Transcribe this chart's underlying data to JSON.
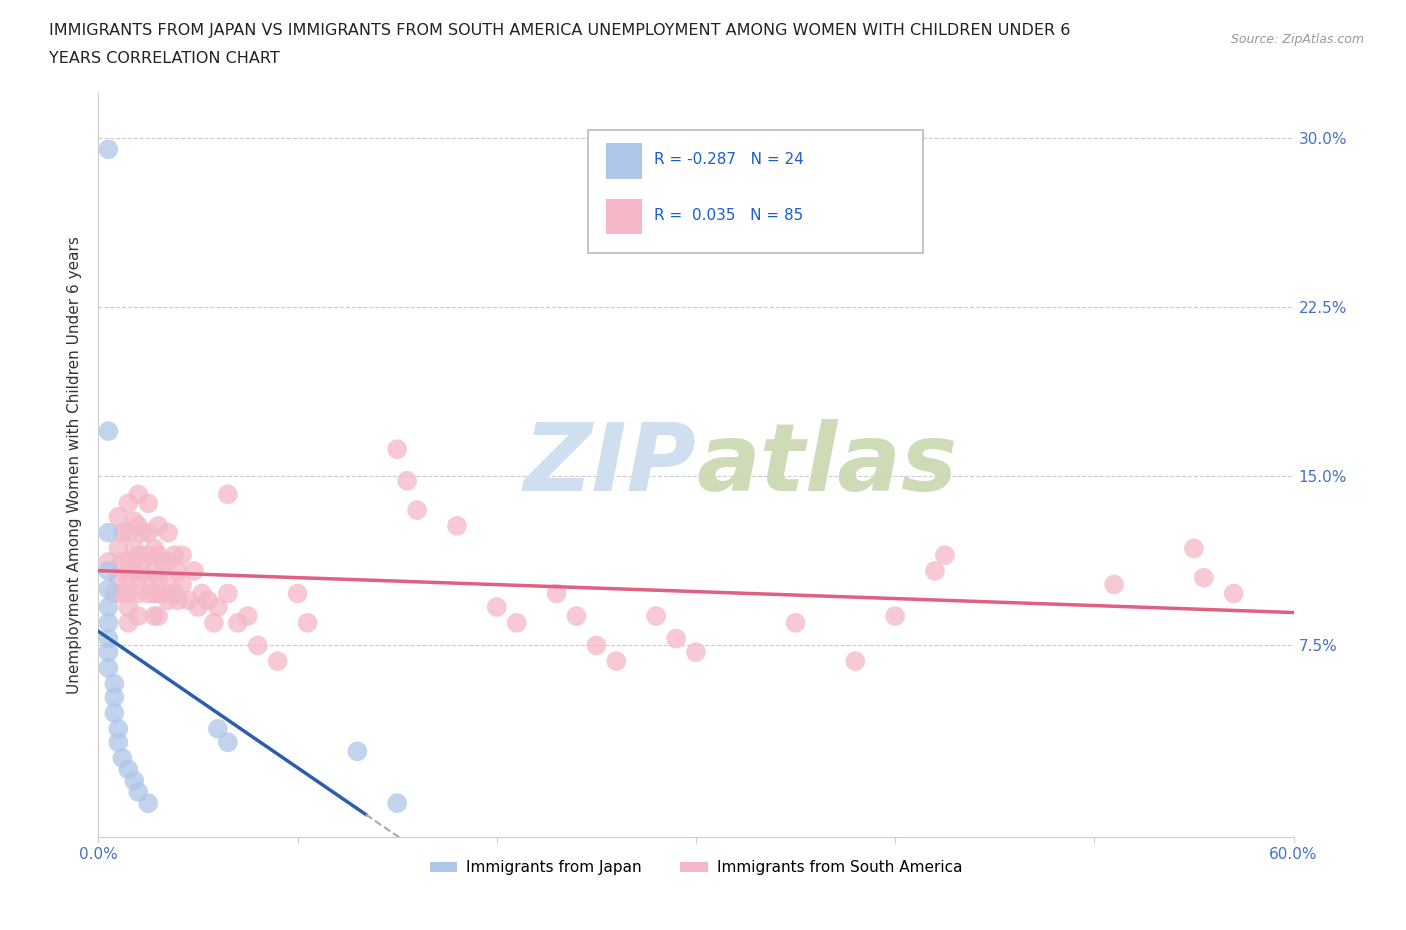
{
  "title_line1": "IMMIGRANTS FROM JAPAN VS IMMIGRANTS FROM SOUTH AMERICA UNEMPLOYMENT AMONG WOMEN WITH CHILDREN UNDER 6",
  "title_line2": "YEARS CORRELATION CHART",
  "source": "Source: ZipAtlas.com",
  "ylabel": "Unemployment Among Women with Children Under 6 years",
  "xlim": [
    0.0,
    0.6
  ],
  "ylim": [
    -0.01,
    0.32
  ],
  "xticks": [
    0.0,
    0.1,
    0.2,
    0.3,
    0.4,
    0.5,
    0.6
  ],
  "xticklabels_visible": [
    "0.0%",
    "",
    "",
    "",
    "",
    "",
    "60.0%"
  ],
  "yticks": [
    0.0,
    0.075,
    0.15,
    0.225,
    0.3
  ],
  "yticklabels_right": [
    "",
    "7.5%",
    "15.0%",
    "22.5%",
    "30.0%"
  ],
  "tick_color": "#4472c4",
  "color_japan": "#aec6e8",
  "color_sa": "#f4b8c8",
  "color_japan_line": "#2b5fad",
  "color_sa_line": "#e06080",
  "watermark_color": "#d0dff0",
  "japan_points": [
    [
      0.005,
      0.295
    ],
    [
      0.005,
      0.17
    ],
    [
      0.005,
      0.125
    ],
    [
      0.005,
      0.108
    ],
    [
      0.005,
      0.1
    ],
    [
      0.005,
      0.092
    ],
    [
      0.005,
      0.085
    ],
    [
      0.005,
      0.078
    ],
    [
      0.005,
      0.072
    ],
    [
      0.005,
      0.065
    ],
    [
      0.008,
      0.058
    ],
    [
      0.008,
      0.052
    ],
    [
      0.008,
      0.045
    ],
    [
      0.01,
      0.038
    ],
    [
      0.01,
      0.032
    ],
    [
      0.012,
      0.025
    ],
    [
      0.015,
      0.02
    ],
    [
      0.018,
      0.015
    ],
    [
      0.02,
      0.01
    ],
    [
      0.025,
      0.005
    ],
    [
      0.06,
      0.038
    ],
    [
      0.065,
      0.032
    ],
    [
      0.13,
      0.028
    ],
    [
      0.15,
      0.005
    ]
  ],
  "sa_points": [
    [
      0.005,
      0.112
    ],
    [
      0.008,
      0.098
    ],
    [
      0.01,
      0.132
    ],
    [
      0.01,
      0.118
    ],
    [
      0.01,
      0.105
    ],
    [
      0.012,
      0.125
    ],
    [
      0.012,
      0.112
    ],
    [
      0.012,
      0.098
    ],
    [
      0.015,
      0.138
    ],
    [
      0.015,
      0.125
    ],
    [
      0.015,
      0.112
    ],
    [
      0.015,
      0.105
    ],
    [
      0.015,
      0.098
    ],
    [
      0.015,
      0.092
    ],
    [
      0.015,
      0.085
    ],
    [
      0.018,
      0.13
    ],
    [
      0.018,
      0.118
    ],
    [
      0.018,
      0.108
    ],
    [
      0.02,
      0.142
    ],
    [
      0.02,
      0.128
    ],
    [
      0.02,
      0.115
    ],
    [
      0.02,
      0.105
    ],
    [
      0.02,
      0.098
    ],
    [
      0.02,
      0.088
    ],
    [
      0.022,
      0.125
    ],
    [
      0.022,
      0.112
    ],
    [
      0.025,
      0.138
    ],
    [
      0.025,
      0.125
    ],
    [
      0.025,
      0.115
    ],
    [
      0.025,
      0.105
    ],
    [
      0.025,
      0.098
    ],
    [
      0.028,
      0.118
    ],
    [
      0.028,
      0.108
    ],
    [
      0.028,
      0.098
    ],
    [
      0.028,
      0.088
    ],
    [
      0.03,
      0.128
    ],
    [
      0.03,
      0.115
    ],
    [
      0.03,
      0.105
    ],
    [
      0.03,
      0.098
    ],
    [
      0.03,
      0.088
    ],
    [
      0.032,
      0.112
    ],
    [
      0.032,
      0.098
    ],
    [
      0.035,
      0.125
    ],
    [
      0.035,
      0.112
    ],
    [
      0.035,
      0.102
    ],
    [
      0.035,
      0.095
    ],
    [
      0.038,
      0.115
    ],
    [
      0.038,
      0.098
    ],
    [
      0.04,
      0.108
    ],
    [
      0.04,
      0.095
    ],
    [
      0.042,
      0.115
    ],
    [
      0.042,
      0.102
    ],
    [
      0.045,
      0.095
    ],
    [
      0.048,
      0.108
    ],
    [
      0.05,
      0.092
    ],
    [
      0.052,
      0.098
    ],
    [
      0.055,
      0.095
    ],
    [
      0.058,
      0.085
    ],
    [
      0.06,
      0.092
    ],
    [
      0.065,
      0.098
    ],
    [
      0.065,
      0.142
    ],
    [
      0.07,
      0.085
    ],
    [
      0.075,
      0.088
    ],
    [
      0.08,
      0.075
    ],
    [
      0.09,
      0.068
    ],
    [
      0.1,
      0.098
    ],
    [
      0.105,
      0.085
    ],
    [
      0.15,
      0.162
    ],
    [
      0.155,
      0.148
    ],
    [
      0.16,
      0.135
    ],
    [
      0.18,
      0.128
    ],
    [
      0.2,
      0.092
    ],
    [
      0.21,
      0.085
    ],
    [
      0.23,
      0.098
    ],
    [
      0.24,
      0.088
    ],
    [
      0.25,
      0.075
    ],
    [
      0.26,
      0.068
    ],
    [
      0.28,
      0.088
    ],
    [
      0.29,
      0.078
    ],
    [
      0.3,
      0.072
    ],
    [
      0.35,
      0.085
    ],
    [
      0.38,
      0.068
    ],
    [
      0.4,
      0.088
    ],
    [
      0.42,
      0.108
    ],
    [
      0.425,
      0.115
    ],
    [
      0.51,
      0.102
    ],
    [
      0.55,
      0.118
    ],
    [
      0.555,
      0.105
    ],
    [
      0.57,
      0.098
    ]
  ]
}
